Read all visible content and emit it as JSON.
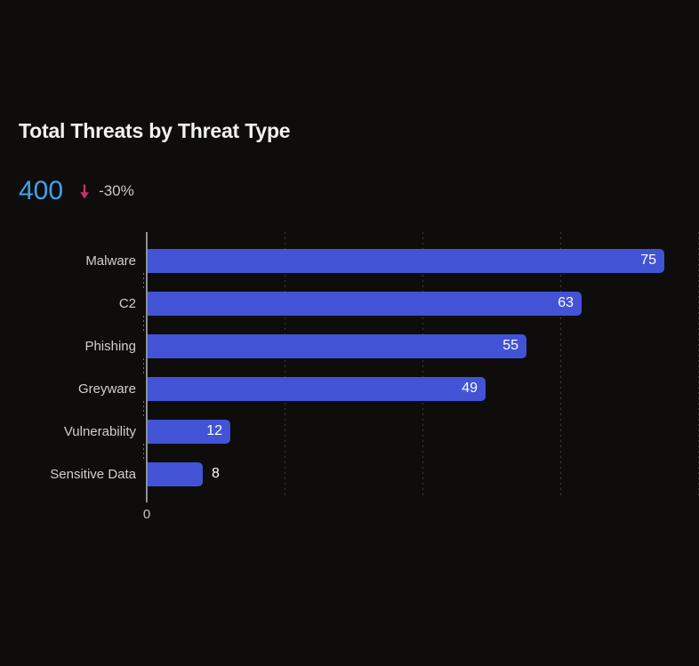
{
  "header": {
    "title": "Total Threats by Threat Type"
  },
  "kpi": {
    "value": "400",
    "trend": "down",
    "change": "-30%"
  },
  "colors": {
    "background": "#0e0d0b",
    "bar": "#4353d6",
    "kpi_value": "#40a2ec",
    "trend_arrow": "#cb2e6d",
    "change_text": "#c8c8c6",
    "title_text": "#f1f1ef",
    "category_text": "#cfcfce",
    "value_text": "#ffffff",
    "axis_line": "#919191",
    "gridline": "#3c3c3c"
  },
  "chart_data": {
    "type": "bar",
    "orientation": "horizontal",
    "title": "Total Threats by Threat Type",
    "categories": [
      "Malware",
      "C2",
      "Phishing",
      "Greyware",
      "Vulnerability",
      "Sensitive Data"
    ],
    "values": [
      75,
      63,
      55,
      49,
      12,
      8
    ],
    "xlabel": "",
    "ylabel": "",
    "xlim": [
      0,
      80
    ],
    "gridline_interval": 20,
    "grid": "dashed-vertical-gridlines",
    "x_tick_labels_visible": [
      "0"
    ],
    "value_labels": "at-end-of-bar",
    "legend": false
  },
  "x_axis": {
    "zero_label": "0"
  }
}
